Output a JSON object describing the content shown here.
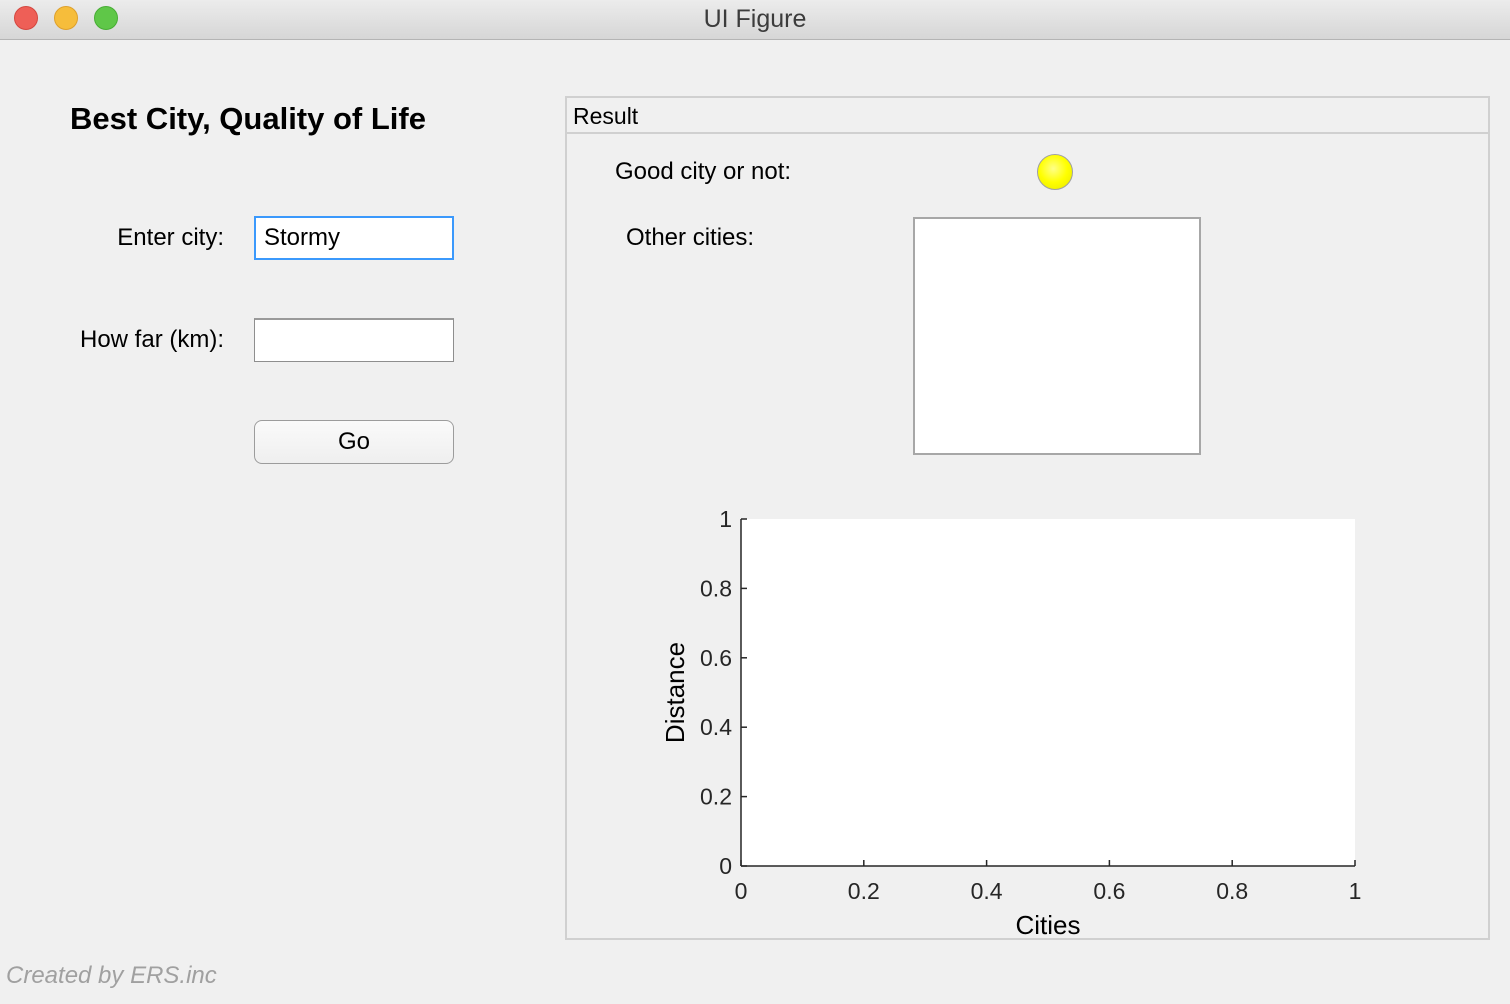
{
  "window": {
    "title": "UI Figure"
  },
  "app": {
    "title": "Best City, Quality of Life",
    "city_label": "Enter city:",
    "city_value": "Stormy",
    "distance_label": "How far (km):",
    "distance_value": "",
    "go_label": "Go",
    "footer": "Created by ERS.inc"
  },
  "result": {
    "title": "Result",
    "lamp_label": "Good city or not:",
    "lamp_color": "#ffff00",
    "listbox_label": "Other cities:",
    "listbox_items": []
  },
  "chart_data": {
    "type": "scatter",
    "xlabel": "Cities",
    "ylabel": "Distance",
    "xlim": [
      0,
      1
    ],
    "ylim": [
      0,
      1
    ],
    "x_ticks": [
      "0",
      "0.2",
      "0.4",
      "0.6",
      "0.8",
      "1"
    ],
    "y_ticks": [
      "0",
      "0.2",
      "0.4",
      "0.6",
      "0.8",
      "1"
    ],
    "series": [],
    "grid": false
  }
}
